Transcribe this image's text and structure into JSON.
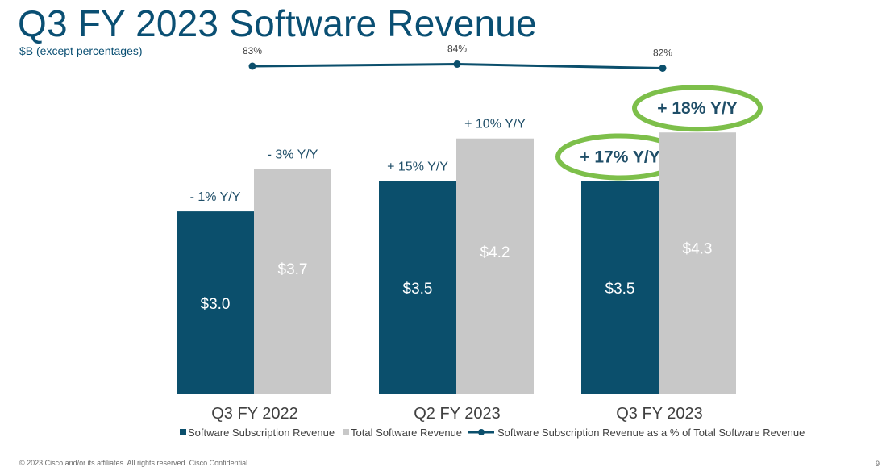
{
  "header": {
    "title": "Q3 FY 2023 Software Revenue",
    "subtitle": "$B (except percentages)"
  },
  "footer": {
    "copyright": "© 2023  Cisco and/or its affiliates. All rights reserved.   Cisco Confidential",
    "page_number": "9"
  },
  "colors": {
    "subscription": "#0b4f6c",
    "total": "#c8c8c8",
    "line": "#0b4f6c",
    "highlight": "#7dbf4a",
    "text": "#1f4e68"
  },
  "chart_data": {
    "type": "bar",
    "title": "Q3 FY 2023 Software Revenue",
    "ylabel": "$B",
    "ylim": [
      0,
      5.2
    ],
    "categories": [
      "Q3 FY 2022",
      "Q2 FY 2023",
      "Q3 FY 2023"
    ],
    "series": [
      {
        "name": "Software Subscription Revenue",
        "values": [
          3.0,
          3.5,
          3.5
        ],
        "value_labels": [
          "$3.0",
          "$3.5",
          "$3.5"
        ],
        "growth_labels": [
          "- 1% Y/Y",
          "+ 15% Y/Y",
          "+ 17% Y/Y"
        ]
      },
      {
        "name": "Total Software Revenue",
        "values": [
          3.7,
          4.2,
          4.3
        ],
        "value_labels": [
          "$3.7",
          "$4.2",
          "$4.3"
        ],
        "growth_labels": [
          "- 3% Y/Y",
          "+ 10% Y/Y",
          "+ 18% Y/Y"
        ]
      }
    ],
    "line_series": {
      "name": "Software Subscription Revenue as a % of Total Software Revenue",
      "values": [
        83,
        84,
        82
      ],
      "labels": [
        "83%",
        "84%",
        "82%"
      ]
    },
    "highlighted_labels": [
      "+ 17% Y/Y",
      "+ 18% Y/Y"
    ],
    "legend": [
      "Software Subscription Revenue",
      "Total Software Revenue",
      "Software Subscription Revenue as a % of Total Software Revenue"
    ]
  }
}
